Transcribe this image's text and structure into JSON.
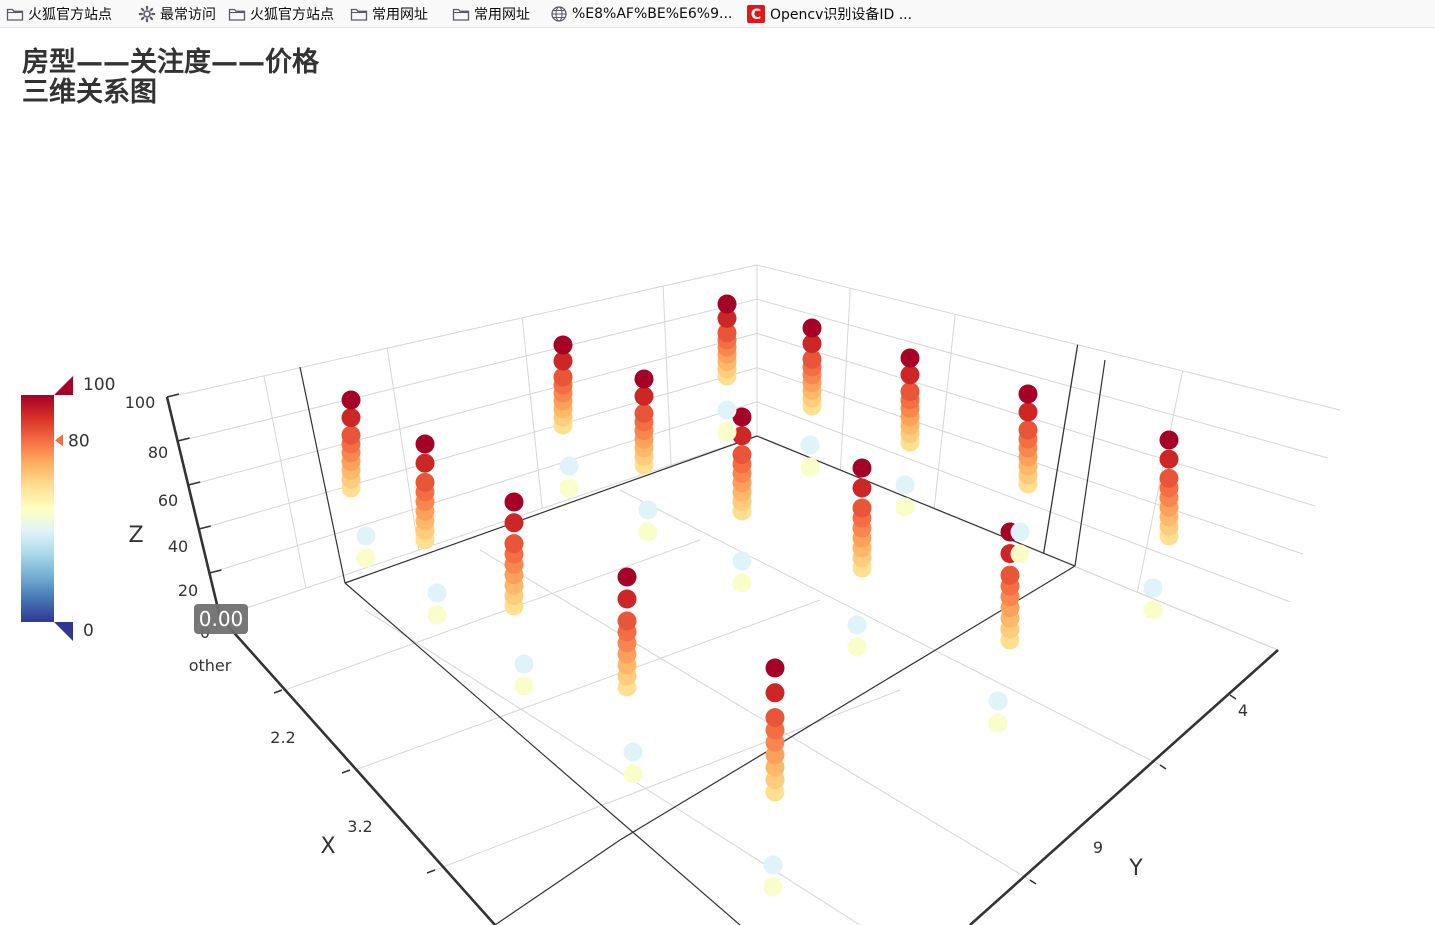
{
  "bookmarks": [
    {
      "label": "火狐官方站点",
      "icon": "folder-icon"
    },
    {
      "label": "最常访问",
      "icon": "gear-icon"
    },
    {
      "label": "火狐官方站点",
      "icon": "folder-icon"
    },
    {
      "label": "常用网址",
      "icon": "folder-icon"
    },
    {
      "label": "常用网址",
      "icon": "folder-icon"
    },
    {
      "label": "%E8%AF%BE%E6%9...",
      "icon": "globe-icon"
    },
    {
      "label": "Opencv识别设备ID ...",
      "icon": "csdn-icon"
    }
  ],
  "chart_title_line1": "房型——关注度——价格",
  "chart_title_line2": "三维关系图",
  "visual_map": {
    "max_label": "100",
    "mid_label": "80",
    "min_label": "0",
    "colors": [
      "#313695",
      "#4575b4",
      "#74add1",
      "#abd9e9",
      "#e0f3f8",
      "#ffffbf",
      "#fee090",
      "#fdae61",
      "#f46d43",
      "#d73027",
      "#a50026"
    ]
  },
  "tooltip_value": "0.00",
  "chart_data": {
    "type": "scatter3D",
    "title": "房型——关注度——价格 三维关系图",
    "x_axis": {
      "name": "X",
      "type": "category",
      "categories": [
        "other",
        "2.2",
        "3.2"
      ]
    },
    "y_axis": {
      "name": "Y",
      "type": "category",
      "categories": [
        "4",
        "9"
      ]
    },
    "z_axis": {
      "name": "Z",
      "ticks": [
        "0",
        "20",
        "40",
        "60",
        "80",
        "100"
      ],
      "min": 0,
      "max": 100
    },
    "visual_map": {
      "min": 0,
      "max": 100,
      "handle_at": 80
    },
    "point_values_per_column": [
      60,
      64,
      68,
      72,
      76,
      80,
      84,
      92,
      100
    ],
    "low_values_per_column": [
      48,
      40
    ],
    "columns": [
      {
        "id": 1,
        "kind": "high"
      },
      {
        "id": 2,
        "kind": "high"
      },
      {
        "id": 3,
        "kind": "high"
      },
      {
        "id": 4,
        "kind": "high"
      },
      {
        "id": 5,
        "kind": "high"
      },
      {
        "id": 6,
        "kind": "high"
      },
      {
        "id": 7,
        "kind": "high"
      },
      {
        "id": 8,
        "kind": "high"
      },
      {
        "id": 9,
        "kind": "high"
      },
      {
        "id": 10,
        "kind": "high"
      },
      {
        "id": 11,
        "kind": "high"
      },
      {
        "id": 12,
        "kind": "high"
      },
      {
        "id": 13,
        "kind": "high"
      },
      {
        "id": 14,
        "kind": "high"
      },
      {
        "id": 15,
        "kind": "high"
      },
      {
        "id": 16,
        "kind": "low"
      },
      {
        "id": 17,
        "kind": "low"
      },
      {
        "id": 18,
        "kind": "low"
      },
      {
        "id": 19,
        "kind": "low"
      },
      {
        "id": 20,
        "kind": "low"
      },
      {
        "id": 21,
        "kind": "low"
      },
      {
        "id": 22,
        "kind": "low"
      },
      {
        "id": 23,
        "kind": "low"
      },
      {
        "id": 24,
        "kind": "low"
      },
      {
        "id": 25,
        "kind": "low"
      },
      {
        "id": 26,
        "kind": "low"
      },
      {
        "id": 27,
        "kind": "low"
      },
      {
        "id": 28,
        "kind": "low"
      },
      {
        "id": 29,
        "kind": "low"
      },
      {
        "id": 30,
        "kind": "low"
      }
    ],
    "grid": true
  }
}
